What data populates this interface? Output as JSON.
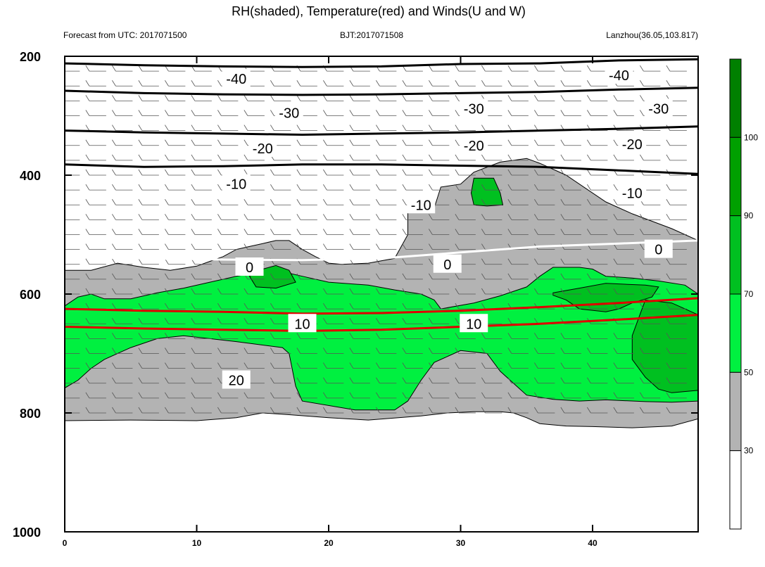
{
  "chart_data": {
    "type": "contour",
    "title": "RH(shaded), Temperature(red) and Winds(U and W)",
    "info_left": "Forecast from UTC: 2017071500",
    "info_center": "BJT:2017071508",
    "info_right": "Lanzhou(36.05,103.817)",
    "xlim": [
      0,
      48
    ],
    "ylim": [
      1000,
      200
    ],
    "x_ticks": [
      0,
      10,
      20,
      30,
      40
    ],
    "y_ticks": [
      200,
      400,
      600,
      800,
      1000
    ],
    "colorbar": {
      "levels": [
        "30",
        "50",
        "70",
        "90",
        "100"
      ],
      "colors": [
        "#ffffff",
        "#b3b3b3",
        "#00f040",
        "#00c020",
        "#00a000",
        "#008000"
      ]
    },
    "rh_regions": [
      {
        "level": "gray",
        "color": "#b3b3b3",
        "points": [
          [
            0,
            560
          ],
          [
            2,
            560
          ],
          [
            4,
            548
          ],
          [
            6,
            555
          ],
          [
            8,
            560
          ],
          [
            10,
            553
          ],
          [
            11,
            545
          ],
          [
            12,
            537
          ],
          [
            13,
            525
          ],
          [
            14,
            520
          ],
          [
            15,
            515
          ],
          [
            16,
            510
          ],
          [
            17,
            510
          ],
          [
            18,
            525
          ],
          [
            19,
            537
          ],
          [
            20,
            548
          ],
          [
            21,
            550
          ],
          [
            23,
            548
          ],
          [
            25,
            540
          ],
          [
            26,
            500
          ],
          [
            26,
            455
          ],
          [
            28,
            455
          ],
          [
            28.5,
            420
          ],
          [
            30,
            415
          ],
          [
            31,
            395
          ],
          [
            33,
            378
          ],
          [
            35,
            372
          ],
          [
            36,
            380
          ],
          [
            38,
            400
          ],
          [
            41,
            445
          ],
          [
            43,
            465
          ],
          [
            46,
            490
          ],
          [
            48,
            510
          ],
          [
            48,
            810
          ],
          [
            46,
            822
          ],
          [
            43,
            825
          ],
          [
            40,
            823
          ],
          [
            38,
            822
          ],
          [
            36,
            818
          ],
          [
            35,
            808
          ],
          [
            34,
            800
          ],
          [
            33,
            798
          ],
          [
            31,
            798
          ],
          [
            29,
            800
          ],
          [
            27,
            805
          ],
          [
            23,
            812
          ],
          [
            20,
            808
          ],
          [
            17,
            803
          ],
          [
            15,
            800
          ],
          [
            13,
            808
          ],
          [
            10,
            813
          ],
          [
            5,
            812
          ],
          [
            0,
            813
          ]
        ]
      },
      {
        "level": "50-70",
        "color": "#00f040",
        "points": [
          [
            0,
            620
          ],
          [
            1,
            605
          ],
          [
            2,
            600
          ],
          [
            3,
            608
          ],
          [
            5,
            608
          ],
          [
            7,
            598
          ],
          [
            9,
            590
          ],
          [
            11,
            580
          ],
          [
            13,
            570
          ],
          [
            15,
            562
          ],
          [
            17,
            565
          ],
          [
            18,
            570
          ],
          [
            20,
            580
          ],
          [
            23,
            585
          ],
          [
            25,
            593
          ],
          [
            27,
            600
          ],
          [
            28,
            610
          ],
          [
            28.5,
            625
          ],
          [
            31,
            615
          ],
          [
            33,
            603
          ],
          [
            35,
            588
          ],
          [
            36,
            570
          ],
          [
            37,
            555
          ],
          [
            39,
            555
          ],
          [
            40,
            558
          ],
          [
            41,
            570
          ],
          [
            43,
            573
          ],
          [
            45,
            578
          ],
          [
            47,
            585
          ],
          [
            48,
            600
          ],
          [
            48,
            780
          ],
          [
            46,
            782
          ],
          [
            44,
            781
          ],
          [
            41,
            778
          ],
          [
            39,
            780
          ],
          [
            37,
            777
          ],
          [
            35,
            770
          ],
          [
            34,
            750
          ],
          [
            33,
            730
          ],
          [
            32,
            700
          ],
          [
            30,
            695
          ],
          [
            28,
            715
          ],
          [
            27,
            745
          ],
          [
            26,
            780
          ],
          [
            25,
            795
          ],
          [
            22,
            795
          ],
          [
            18,
            780
          ],
          [
            17.5,
            755
          ],
          [
            17,
            700
          ],
          [
            16.5,
            690
          ],
          [
            13,
            680
          ],
          [
            11,
            675
          ],
          [
            9,
            670
          ],
          [
            7,
            675
          ],
          [
            5,
            690
          ],
          [
            3,
            710
          ],
          [
            2,
            725
          ],
          [
            1,
            745
          ],
          [
            0,
            758
          ]
        ]
      },
      {
        "level": "70-90",
        "color": "#00c020",
        "points": [
          [
            37,
            598
          ],
          [
            39,
            590
          ],
          [
            41,
            582
          ],
          [
            43,
            584
          ],
          [
            44,
            585
          ],
          [
            45,
            588
          ],
          [
            44.5,
            605
          ],
          [
            43,
            615
          ],
          [
            42,
            625
          ],
          [
            41,
            630
          ],
          [
            39,
            625
          ],
          [
            38,
            610
          ],
          [
            37,
            602
          ]
        ]
      },
      {
        "level": "70-90",
        "color": "#00c020",
        "points": [
          [
            44,
            610
          ],
          [
            46,
            615
          ],
          [
            47,
            625
          ],
          [
            48,
            635
          ],
          [
            48,
            762
          ],
          [
            46,
            766
          ],
          [
            45,
            760
          ],
          [
            44,
            740
          ],
          [
            43,
            710
          ],
          [
            43,
            670
          ],
          [
            43.5,
            640
          ]
        ]
      },
      {
        "level": "70-90",
        "color": "#00c020",
        "points": [
          [
            31,
            405
          ],
          [
            32.5,
            405
          ],
          [
            33,
            430
          ],
          [
            33.2,
            450
          ],
          [
            32,
            452
          ],
          [
            31,
            450
          ],
          [
            30.8,
            430
          ]
        ]
      },
      {
        "level": "70-90",
        "color": "#00c020",
        "points": [
          [
            14,
            570
          ],
          [
            15,
            558
          ],
          [
            16,
            552
          ],
          [
            17,
            560
          ],
          [
            17.5,
            580
          ],
          [
            16,
            590
          ],
          [
            14.5,
            588
          ]
        ]
      }
    ],
    "temperature_lines": [
      {
        "label": "-40",
        "color": "#000000",
        "points": [
          [
            0,
            212
          ],
          [
            6,
            215
          ],
          [
            12,
            217
          ],
          [
            18,
            218
          ],
          [
            24,
            217
          ],
          [
            30,
            213
          ],
          [
            36,
            212
          ],
          [
            42,
            207
          ],
          [
            48,
            205
          ]
        ],
        "label_at": [
          [
            13,
            238
          ],
          [
            42,
            232
          ]
        ]
      },
      {
        "label": "-30",
        "color": "#000000",
        "points": [
          [
            0,
            258
          ],
          [
            6,
            262
          ],
          [
            12,
            264
          ],
          [
            18,
            265
          ],
          [
            24,
            264
          ],
          [
            30,
            262
          ],
          [
            36,
            260
          ],
          [
            42,
            256
          ],
          [
            48,
            253
          ]
        ],
        "label_at": [
          [
            17,
            295
          ],
          [
            31,
            288
          ],
          [
            45,
            288
          ]
        ]
      },
      {
        "label": "-20",
        "color": "#000000",
        "points": [
          [
            0,
            325
          ],
          [
            6,
            328
          ],
          [
            12,
            330
          ],
          [
            18,
            332
          ],
          [
            24,
            330
          ],
          [
            30,
            328
          ],
          [
            36,
            325
          ],
          [
            42,
            322
          ],
          [
            48,
            318
          ]
        ],
        "label_at": [
          [
            15,
            355
          ],
          [
            31,
            350
          ],
          [
            43,
            348
          ]
        ]
      },
      {
        "label": "-10",
        "color": "#000000",
        "points": [
          [
            0,
            382
          ],
          [
            6,
            386
          ],
          [
            12,
            385
          ],
          [
            18,
            382
          ],
          [
            24,
            382
          ],
          [
            30,
            384
          ],
          [
            36,
            386
          ],
          [
            42,
            392
          ],
          [
            48,
            398
          ]
        ],
        "label_at": [
          [
            13,
            415
          ],
          [
            27,
            450
          ],
          [
            43,
            430
          ]
        ]
      },
      {
        "label": "0",
        "color": "#ffffff",
        "points": [
          [
            0,
            538
          ],
          [
            6,
            540
          ],
          [
            12,
            542
          ],
          [
            18,
            543
          ],
          [
            24,
            540
          ],
          [
            30,
            530
          ],
          [
            36,
            520
          ],
          [
            42,
            515
          ],
          [
            48,
            510
          ]
        ],
        "label_at": [
          [
            14,
            555
          ],
          [
            29,
            550
          ],
          [
            45,
            525
          ]
        ]
      },
      {
        "label": "10",
        "color": "#e00000",
        "points": [
          [
            0,
            625
          ],
          [
            6,
            628
          ],
          [
            12,
            630
          ],
          [
            18,
            633
          ],
          [
            24,
            632
          ],
          [
            30,
            628
          ],
          [
            36,
            622
          ],
          [
            42,
            615
          ],
          [
            48,
            607
          ]
        ],
        "label_at": [
          [
            18,
            650
          ],
          [
            31,
            650
          ]
        ]
      },
      {
        "label": "20",
        "color": "#e00000",
        "points": [
          [
            0,
            655
          ],
          [
            6,
            658
          ],
          [
            12,
            660
          ],
          [
            18,
            662
          ],
          [
            24,
            660
          ],
          [
            30,
            655
          ],
          [
            36,
            650
          ],
          [
            42,
            643
          ],
          [
            48,
            635
          ]
        ],
        "label_at": [
          [
            13,
            745
          ]
        ]
      }
    ],
    "wind_barbs": "pattern"
  }
}
